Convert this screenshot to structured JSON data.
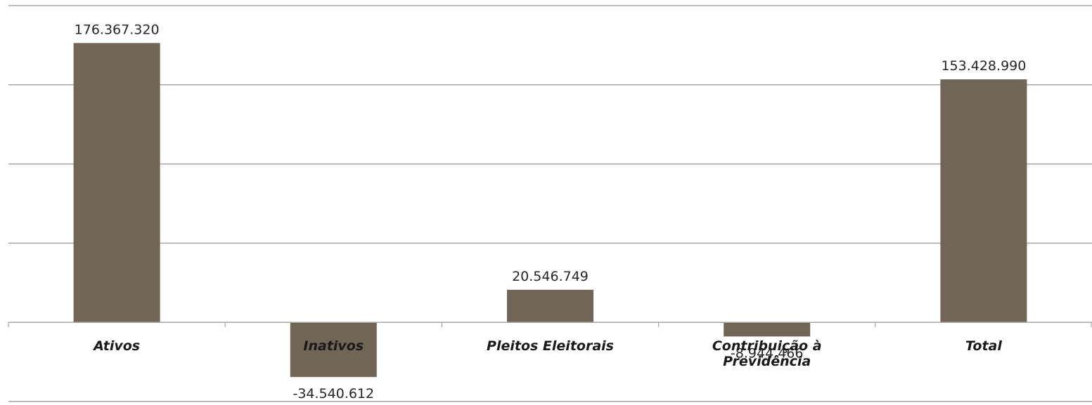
{
  "chart_data": {
    "type": "bar",
    "categories": [
      "Ativos",
      "Inativos",
      "Pleitos Eleitorais",
      "Contribuição à Previdência",
      "Total"
    ],
    "category_lines": [
      [
        "Ativos"
      ],
      [
        "Inativos"
      ],
      [
        "Pleitos Eleitorais"
      ],
      [
        "Contribuição à",
        "Previdência"
      ],
      [
        "Total"
      ]
    ],
    "values": [
      176367320,
      -34540612,
      20546749,
      -8944466,
      153428990
    ],
    "data_labels": [
      "176.367.320",
      "-34.540.612",
      "20.546.749",
      "-8.944.466",
      "153.428.990"
    ],
    "ylim": [
      -50000000,
      200000000
    ],
    "grid": true,
    "legend": "none",
    "bar_color": "#716656",
    "title": "",
    "xlabel": "",
    "ylabel": ""
  }
}
